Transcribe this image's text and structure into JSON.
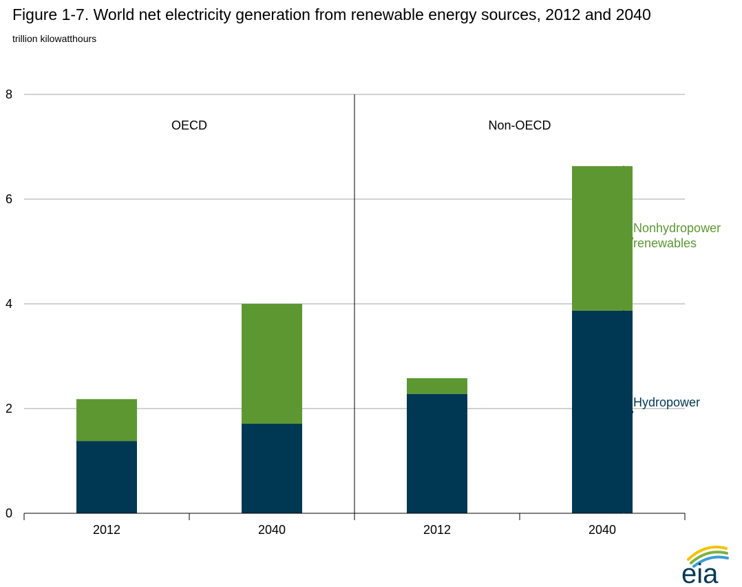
{
  "chart_data": {
    "type": "bar",
    "stacked": true,
    "title": "Figure 1-7. World net electricity generation from renewable energy sources, 2012 and 2040",
    "subtitle": "trillion kilowatthours",
    "ylim": [
      0,
      8
    ],
    "y_ticks": [
      0,
      2,
      4,
      6,
      8
    ],
    "grid": true,
    "groups": [
      {
        "name": "OECD",
        "categories": [
          "2012",
          "2040"
        ]
      },
      {
        "name": "Non-OECD",
        "categories": [
          "2012",
          "2040"
        ]
      }
    ],
    "series": [
      {
        "name": "Hydropower",
        "color": "#003853",
        "values": [
          1.38,
          1.71,
          2.28,
          3.87
        ]
      },
      {
        "name": "Nonhydropower renewables",
        "color": "#5d9732",
        "values": [
          0.8,
          2.29,
          0.3,
          2.76
        ]
      }
    ],
    "series_labels": {
      "hydro": "Hydropower",
      "nonhydro_line1": "Nonhydropower",
      "nonhydro_line2": "renewables"
    },
    "logo_text": "eia"
  }
}
